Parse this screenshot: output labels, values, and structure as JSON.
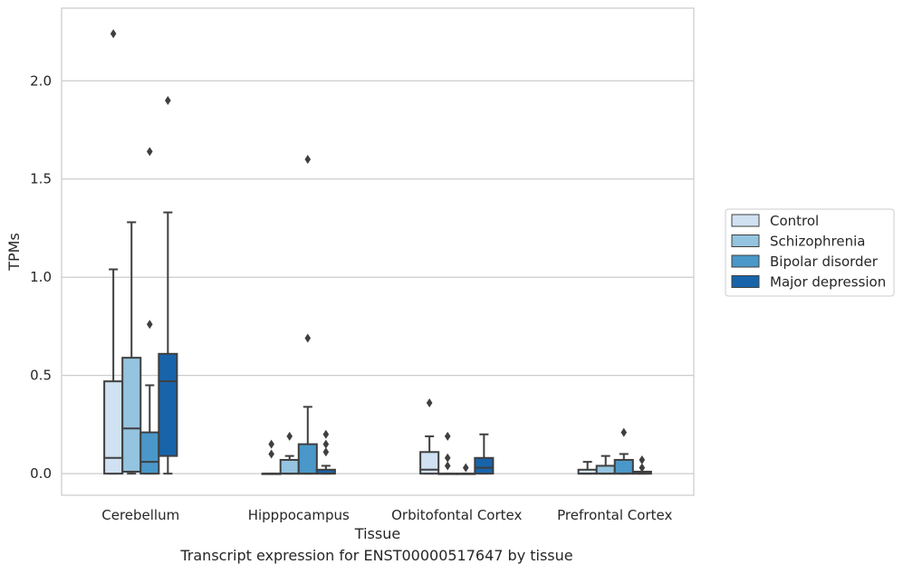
{
  "caption": "Transcript expression for ENST00000517647 by tissue",
  "chart_data": {
    "type": "box",
    "title": "",
    "xlabel": "Tissue",
    "ylabel": "TPMs",
    "ylim": [
      -0.11,
      2.37
    ],
    "yticks": [
      0.0,
      0.5,
      1.0,
      1.5,
      2.0
    ],
    "ytick_labels": [
      "0.0",
      "0.5",
      "1.0",
      "1.5",
      "2.0"
    ],
    "grid": "horizontal",
    "legend_position": "right",
    "categories": [
      "Cerebellum",
      "Hipppocampus",
      "Orbitofontal Cortex",
      "Prefrontal Cortex"
    ],
    "series": [
      {
        "name": "Control",
        "color": "#d0e1f2",
        "boxes": [
          {
            "whislo": 0.0,
            "q1": 0.0,
            "med": 0.08,
            "q3": 0.47,
            "whishi": 1.04,
            "fliers": [
              2.24
            ]
          },
          {
            "whislo": 0.0,
            "q1": 0.0,
            "med": 0.0,
            "q3": 0.0,
            "whishi": 0.0,
            "fliers": [
              0.1,
              0.15
            ]
          },
          {
            "whislo": 0.0,
            "q1": 0.0,
            "med": 0.02,
            "q3": 0.11,
            "whishi": 0.19,
            "fliers": [
              0.36
            ]
          },
          {
            "whislo": 0.0,
            "q1": 0.0,
            "med": 0.0,
            "q3": 0.02,
            "whishi": 0.06,
            "fliers": []
          }
        ]
      },
      {
        "name": "Schizophrenia",
        "color": "#94c4df",
        "boxes": [
          {
            "whislo": 0.0,
            "q1": 0.01,
            "med": 0.23,
            "q3": 0.59,
            "whishi": 1.28,
            "fliers": []
          },
          {
            "whislo": 0.0,
            "q1": 0.0,
            "med": 0.0,
            "q3": 0.07,
            "whishi": 0.09,
            "fliers": [
              0.19
            ]
          },
          {
            "whislo": 0.0,
            "q1": 0.0,
            "med": 0.0,
            "q3": 0.0,
            "whishi": 0.0,
            "fliers": [
              0.04,
              0.08,
              0.19
            ]
          },
          {
            "whislo": 0.0,
            "q1": 0.0,
            "med": 0.0,
            "q3": 0.04,
            "whishi": 0.09,
            "fliers": []
          }
        ]
      },
      {
        "name": "Bipolar disorder",
        "color": "#4a98c9",
        "boxes": [
          {
            "whislo": 0.0,
            "q1": 0.0,
            "med": 0.06,
            "q3": 0.21,
            "whishi": 0.45,
            "fliers": [
              0.76,
              1.64
            ]
          },
          {
            "whislo": 0.0,
            "q1": 0.0,
            "med": 0.0,
            "q3": 0.15,
            "whishi": 0.34,
            "fliers": [
              0.69,
              1.6
            ]
          },
          {
            "whislo": 0.0,
            "q1": 0.0,
            "med": 0.0,
            "q3": 0.0,
            "whishi": 0.0,
            "fliers": [
              0.03
            ]
          },
          {
            "whislo": 0.0,
            "q1": 0.0,
            "med": 0.0,
            "q3": 0.07,
            "whishi": 0.1,
            "fliers": [
              0.21
            ]
          }
        ]
      },
      {
        "name": "Major depression",
        "color": "#1764ab",
        "boxes": [
          {
            "whislo": 0.0,
            "q1": 0.09,
            "med": 0.47,
            "q3": 0.61,
            "whishi": 1.33,
            "fliers": [
              1.9
            ]
          },
          {
            "whislo": 0.0,
            "q1": 0.0,
            "med": 0.0,
            "q3": 0.02,
            "whishi": 0.04,
            "fliers": [
              0.11,
              0.15,
              0.2
            ]
          },
          {
            "whislo": 0.0,
            "q1": 0.0,
            "med": 0.03,
            "q3": 0.08,
            "whishi": 0.2,
            "fliers": []
          },
          {
            "whislo": 0.0,
            "q1": 0.0,
            "med": 0.0,
            "q3": 0.01,
            "whishi": 0.01,
            "fliers": [
              0.03,
              0.07
            ]
          }
        ]
      }
    ]
  }
}
